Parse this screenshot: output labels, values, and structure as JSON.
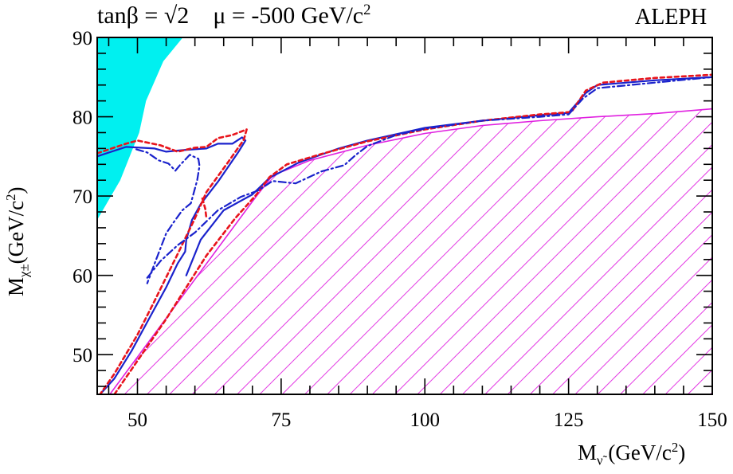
{
  "chart_data": {
    "type": "line",
    "title": "",
    "header_left": {
      "tanb": "tanβ = √2",
      "mu": "μ = -500 GeV/c",
      "mu_exp": "2"
    },
    "header_right": "ALEPH",
    "xlabel": {
      "main": "M",
      "sub": "ν̃",
      "unit": " (GeV/c",
      "unit_exp": "2",
      "close": ")"
    },
    "ylabel": {
      "main": "M",
      "sub": "χ±",
      "unit": "(GeV/c",
      "unit_exp": "2",
      "close": ")"
    },
    "xlim": [
      43,
      150
    ],
    "ylim": [
      45,
      90
    ],
    "xticks": [
      50,
      75,
      100,
      125,
      150
    ],
    "yticks": [
      50,
      60,
      70,
      80,
      90
    ],
    "colors": {
      "blue": "#1a22cc",
      "red": "#e8141c",
      "magenta": "#e020e0",
      "cyan": "#00f0f0"
    },
    "series": [
      {
        "style": "cyan-fill",
        "x": [
          43,
          57.9,
          54.5,
          51.5,
          50.3,
          47,
          43
        ],
        "y": [
          90,
          90,
          87,
          82,
          78,
          72,
          67
        ]
      },
      {
        "style": "magenta-hatch",
        "x": [
          45.2,
          70.5,
          73.5,
          80,
          90,
          100,
          110,
          120,
          130,
          140,
          150,
          150,
          45.2
        ],
        "y": [
          45,
          69.8,
          72.6,
          74.5,
          76.4,
          77.9,
          78.9,
          79.5,
          80.0,
          80.4,
          81.0,
          45,
          45
        ]
      },
      {
        "style": "blue-solid",
        "x": [
          43,
          48,
          53,
          55,
          58,
          62,
          64,
          66.5,
          68.2,
          68.8,
          67.5,
          64,
          61,
          59.5,
          58.5,
          58.3,
          57,
          55,
          52,
          49,
          46,
          43.5
        ],
        "y": [
          75,
          76.2,
          76,
          75.6,
          75.8,
          76,
          76.6,
          76.6,
          77.4,
          77,
          75.5,
          71.8,
          69,
          67,
          64.5,
          63,
          61.5,
          58.5,
          54.5,
          50.5,
          47,
          45
        ]
      },
      {
        "style": "blue-solid",
        "x": [
          58.5,
          61,
          65,
          70,
          73,
          78,
          85,
          90,
          100,
          110,
          120,
          125,
          128,
          130,
          140,
          150
        ],
        "y": [
          60,
          64.5,
          68.2,
          70.2,
          72.3,
          74.2,
          76,
          77,
          78.6,
          79.5,
          80.2,
          80.5,
          83,
          84,
          84.6,
          85
        ]
      },
      {
        "style": "red-dash",
        "x": [
          43,
          48,
          50,
          54,
          57,
          60,
          62,
          64,
          66.5,
          69,
          68.5,
          66,
          62,
          60,
          57,
          53,
          50,
          46,
          43.5
        ],
        "y": [
          75.4,
          76.6,
          77,
          76.4,
          75.6,
          76.1,
          76.2,
          77.3,
          77.7,
          78.4,
          77.1,
          74.5,
          70.5,
          67.2,
          62.7,
          56.8,
          52.5,
          47.6,
          45
        ]
      },
      {
        "style": "red-dash",
        "x": [
          46,
          55,
          62,
          67,
          70.6,
          73,
          76,
          82,
          90,
          100,
          110,
          120,
          125.5,
          128,
          131,
          140,
          150
        ],
        "y": [
          45,
          54.5,
          62.5,
          67.2,
          70.1,
          72.4,
          74,
          75.3,
          76.9,
          78.4,
          79.5,
          80.3,
          80.6,
          83.3,
          84.3,
          84.9,
          85.3
        ]
      },
      {
        "style": "red-dash",
        "x": [
          61.3,
          61.8,
          62
        ],
        "y": [
          69.7,
          68.4,
          67.2
        ]
      },
      {
        "style": "blue-dashdot",
        "x": [
          49.8,
          51.7,
          53.7,
          55.4,
          56.6,
          57.4,
          59.1,
          60.6,
          60.8,
          60.4,
          59.3,
          57.8,
          56.3,
          55,
          53,
          51.7
        ],
        "y": [
          75.9,
          75.5,
          74.5,
          74.1,
          73.2,
          73.9,
          75.2,
          74.7,
          73.8,
          72,
          69.1,
          68.2,
          66.7,
          65.3,
          61.5,
          59
        ]
      },
      {
        "style": "blue-dashdot",
        "x": [
          51.7,
          54,
          57,
          60,
          64,
          68,
          71,
          73.5,
          77.5,
          82,
          86,
          88,
          90,
          95,
          100,
          110,
          120,
          125,
          127.5,
          130,
          140,
          150
        ],
        "y": [
          59.7,
          61.8,
          63.8,
          65.4,
          68.2,
          69.9,
          70.7,
          71.9,
          71.6,
          73.1,
          73.9,
          75.2,
          76.3,
          77.7,
          78.5,
          79.5,
          80,
          80.3,
          82.3,
          83.6,
          84.3,
          85
        ]
      }
    ]
  }
}
